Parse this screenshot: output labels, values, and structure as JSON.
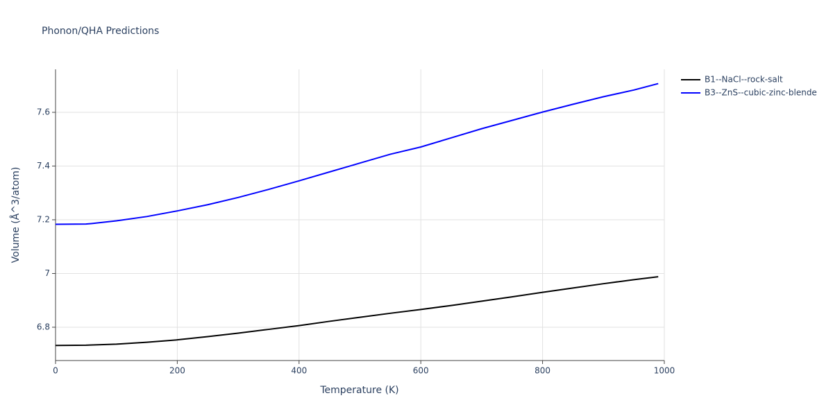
{
  "chart_data": {
    "type": "line",
    "title": "Phonon/QHA Predictions",
    "x_label": "Temperature (K)",
    "y_label": "Volume (Å^3/atom)",
    "xlim": [
      0,
      1000
    ],
    "xticks": [
      0,
      200,
      400,
      600,
      800,
      1000
    ],
    "ylim": [
      6.676,
      7.76
    ],
    "yticks": [
      6.8,
      7,
      7.2,
      7.4,
      7.6
    ],
    "grid": true,
    "legend": "top-right-outside",
    "series": [
      {
        "name": "B1--NaCl--rock-salt",
        "color": "#000000",
        "x": [
          0,
          50,
          100,
          150,
          200,
          250,
          300,
          350,
          400,
          450,
          500,
          550,
          600,
          650,
          700,
          750,
          800,
          850,
          900,
          950,
          990
        ],
        "values": [
          6.732,
          6.733,
          6.737,
          6.744,
          6.753,
          6.765,
          6.778,
          6.792,
          6.806,
          6.822,
          6.837,
          6.852,
          6.866,
          6.881,
          6.897,
          6.913,
          6.93,
          6.946,
          6.962,
          6.977,
          6.988
        ]
      },
      {
        "name": "B3--ZnS--cubic-zinc-blende",
        "color": "#0000ff",
        "x": [
          0,
          50,
          60,
          100,
          150,
          200,
          250,
          300,
          350,
          400,
          450,
          500,
          550,
          600,
          650,
          700,
          750,
          800,
          850,
          900,
          950,
          990
        ],
        "values": [
          7.183,
          7.184,
          7.186,
          7.196,
          7.212,
          7.233,
          7.256,
          7.283,
          7.313,
          7.345,
          7.378,
          7.411,
          7.444,
          7.471,
          7.505,
          7.539,
          7.57,
          7.601,
          7.63,
          7.658,
          7.683,
          7.707
        ]
      }
    ]
  }
}
